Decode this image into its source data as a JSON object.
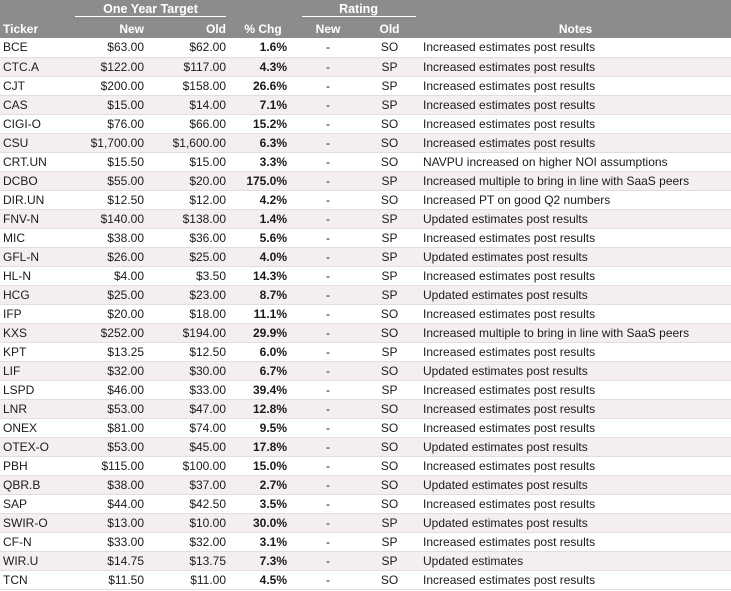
{
  "header": {
    "group_target": "One Year Target",
    "group_rating": "Rating",
    "col_ticker": "Ticker",
    "col_new": "New",
    "col_old": "Old",
    "col_chg": "% Chg",
    "col_rating_new": "New",
    "col_rating_old": "Old",
    "col_notes": "Notes"
  },
  "rows": [
    {
      "ticker": "BCE",
      "new": "$63.00",
      "old": "$62.00",
      "chg": "1.6%",
      "rnew": "-",
      "rold": "SO",
      "notes": "Increased estimates post results"
    },
    {
      "ticker": "CTC.A",
      "new": "$122.00",
      "old": "$117.00",
      "chg": "4.3%",
      "rnew": "-",
      "rold": "SP",
      "notes": "Increased estimates post results"
    },
    {
      "ticker": "CJT",
      "new": "$200.00",
      "old": "$158.00",
      "chg": "26.6%",
      "rnew": "-",
      "rold": "SP",
      "notes": "Increased estimates post results"
    },
    {
      "ticker": "CAS",
      "new": "$15.00",
      "old": "$14.00",
      "chg": "7.1%",
      "rnew": "-",
      "rold": "SP",
      "notes": "Increased estimates post results"
    },
    {
      "ticker": "CIGI-O",
      "new": "$76.00",
      "old": "$66.00",
      "chg": "15.2%",
      "rnew": "-",
      "rold": "SO",
      "notes": "Increased estimates post results"
    },
    {
      "ticker": "CSU",
      "new": "$1,700.00",
      "old": "$1,600.00",
      "chg": "6.3%",
      "rnew": "-",
      "rold": "SO",
      "notes": "Increased estimates post results"
    },
    {
      "ticker": "CRT.UN",
      "new": "$15.50",
      "old": "$15.00",
      "chg": "3.3%",
      "rnew": "-",
      "rold": "SO",
      "notes": "NAVPU increased on higher NOI assumptions"
    },
    {
      "ticker": "DCBO",
      "new": "$55.00",
      "old": "$20.00",
      "chg": "175.0%",
      "rnew": "-",
      "rold": "SP",
      "notes": "Increased multiple to bring in line with SaaS peers"
    },
    {
      "ticker": "DIR.UN",
      "new": "$12.50",
      "old": "$12.00",
      "chg": "4.2%",
      "rnew": "-",
      "rold": "SO",
      "notes": "Increased PT on good Q2 numbers"
    },
    {
      "ticker": "FNV-N",
      "new": "$140.00",
      "old": "$138.00",
      "chg": "1.4%",
      "rnew": "-",
      "rold": "SP",
      "notes": "Updated estimates post results"
    },
    {
      "ticker": "MIC",
      "new": "$38.00",
      "old": "$36.00",
      "chg": "5.6%",
      "rnew": "-",
      "rold": "SP",
      "notes": "Increased estimates post results"
    },
    {
      "ticker": "GFL-N",
      "new": "$26.00",
      "old": "$25.00",
      "chg": "4.0%",
      "rnew": "-",
      "rold": "SP",
      "notes": "Updated estimates post results"
    },
    {
      "ticker": "HL-N",
      "new": "$4.00",
      "old": "$3.50",
      "chg": "14.3%",
      "rnew": "-",
      "rold": "SP",
      "notes": "Increased estimates post results"
    },
    {
      "ticker": "HCG",
      "new": "$25.00",
      "old": "$23.00",
      "chg": "8.7%",
      "rnew": "-",
      "rold": "SP",
      "notes": "Updated estimates post results"
    },
    {
      "ticker": "IFP",
      "new": "$20.00",
      "old": "$18.00",
      "chg": "11.1%",
      "rnew": "-",
      "rold": "SO",
      "notes": "Increased estimates post results"
    },
    {
      "ticker": "KXS",
      "new": "$252.00",
      "old": "$194.00",
      "chg": "29.9%",
      "rnew": "-",
      "rold": "SO",
      "notes": "Increased multiple to bring in line with SaaS peers"
    },
    {
      "ticker": "KPT",
      "new": "$13.25",
      "old": "$12.50",
      "chg": "6.0%",
      "rnew": "-",
      "rold": "SP",
      "notes": "Increased estimates post results"
    },
    {
      "ticker": "LIF",
      "new": "$32.00",
      "old": "$30.00",
      "chg": "6.7%",
      "rnew": "-",
      "rold": "SO",
      "notes": "Updated estimates post results"
    },
    {
      "ticker": "LSPD",
      "new": "$46.00",
      "old": "$33.00",
      "chg": "39.4%",
      "rnew": "-",
      "rold": "SP",
      "notes": "Increased estimates post results"
    },
    {
      "ticker": "LNR",
      "new": "$53.00",
      "old": "$47.00",
      "chg": "12.8%",
      "rnew": "-",
      "rold": "SO",
      "notes": "Increased estimates post results"
    },
    {
      "ticker": "ONEX",
      "new": "$81.00",
      "old": "$74.00",
      "chg": "9.5%",
      "rnew": "-",
      "rold": "SO",
      "notes": "Increased estimates post results"
    },
    {
      "ticker": "OTEX-O",
      "new": "$53.00",
      "old": "$45.00",
      "chg": "17.8%",
      "rnew": "-",
      "rold": "SO",
      "notes": "Updated estimates post results"
    },
    {
      "ticker": "PBH",
      "new": "$115.00",
      "old": "$100.00",
      "chg": "15.0%",
      "rnew": "-",
      "rold": "SO",
      "notes": "Increased estimates post results"
    },
    {
      "ticker": "QBR.B",
      "new": "$38.00",
      "old": "$37.00",
      "chg": "2.7%",
      "rnew": "-",
      "rold": "SO",
      "notes": "Updated estimates post results"
    },
    {
      "ticker": "SAP",
      "new": "$44.00",
      "old": "$42.50",
      "chg": "3.5%",
      "rnew": "-",
      "rold": "SO",
      "notes": "Increased estimates post results"
    },
    {
      "ticker": "SWIR-O",
      "new": "$13.00",
      "old": "$10.00",
      "chg": "30.0%",
      "rnew": "-",
      "rold": "SP",
      "notes": "Updated estimates post results"
    },
    {
      "ticker": "CF-N",
      "new": "$33.00",
      "old": "$32.00",
      "chg": "3.1%",
      "rnew": "-",
      "rold": "SP",
      "notes": "Increased estimates post results"
    },
    {
      "ticker": "WIR.U",
      "new": "$14.75",
      "old": "$13.75",
      "chg": "7.3%",
      "rnew": "-",
      "rold": "SP",
      "notes": "Updated estimates"
    },
    {
      "ticker": "TCN",
      "new": "$11.50",
      "old": "$11.00",
      "chg": "4.5%",
      "rnew": "-",
      "rold": "SO",
      "notes": "Increased estimates post results"
    }
  ]
}
